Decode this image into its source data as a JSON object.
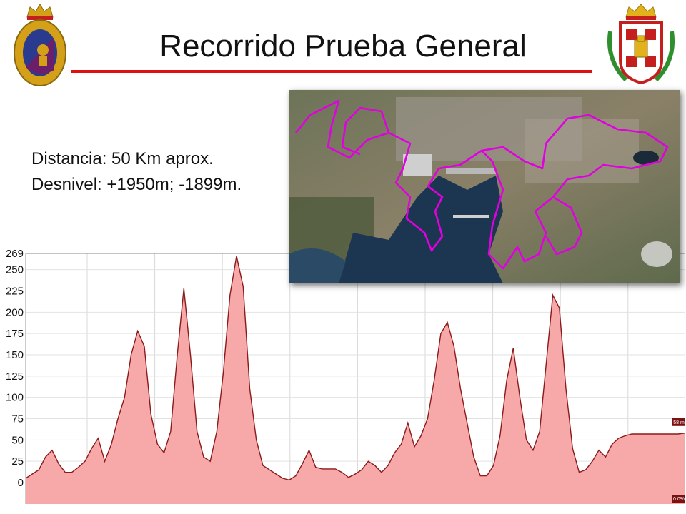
{
  "header": {
    "title": "Recorrido Prueba General"
  },
  "info": {
    "distance": "Distancia: 50 Km aprox.",
    "elevation": "Desnivel: +1950m; -1899m."
  },
  "map": {
    "description_icon": "satellite-route-map",
    "route_color": "#e000e0"
  },
  "colors": {
    "accent_line": "#e01010",
    "profile_stroke": "#8b1a1a",
    "profile_fill": "#f7a8a8"
  },
  "chart_data": {
    "type": "area",
    "xlabel": "",
    "ylabel": "",
    "ylim": [
      0,
      269
    ],
    "yticks": [
      0,
      25,
      50,
      75,
      100,
      125,
      150,
      175,
      200,
      225,
      250,
      269
    ],
    "xlim": [
      0,
      100
    ],
    "grid": true,
    "series": [
      {
        "x": [
          0,
          2,
          3,
          4,
          5,
          6,
          7,
          8,
          9,
          10,
          11,
          12,
          13,
          14,
          15,
          16,
          17,
          18,
          19,
          20,
          21,
          22,
          23,
          24,
          25,
          26,
          27,
          28,
          29,
          30,
          31,
          32,
          33,
          34,
          35,
          36,
          37,
          38,
          39,
          40,
          41,
          42,
          43,
          44,
          45,
          46,
          47,
          48,
          49,
          50,
          51,
          52,
          53,
          54,
          55,
          56,
          57,
          58,
          59,
          60,
          61,
          62,
          63,
          64,
          65,
          66,
          67,
          68,
          69,
          70,
          71,
          72,
          73,
          74,
          75,
          76,
          77,
          78,
          79,
          80,
          81,
          82,
          83,
          84,
          85,
          86,
          87,
          88,
          89,
          90,
          91,
          92,
          93,
          94,
          95,
          96,
          97,
          98,
          99,
          100
        ],
        "values": [
          5,
          15,
          30,
          38,
          22,
          12,
          12,
          18,
          25,
          40,
          52,
          25,
          45,
          75,
          100,
          150,
          178,
          160,
          80,
          45,
          35,
          60,
          150,
          228,
          150,
          60,
          30,
          25,
          60,
          130,
          220,
          266,
          230,
          110,
          50,
          20,
          15,
          10,
          5,
          3,
          8,
          22,
          38,
          18,
          16,
          16,
          16,
          12,
          6,
          10,
          15,
          25,
          20,
          12,
          20,
          35,
          45,
          70,
          42,
          55,
          75,
          120,
          175,
          188,
          160,
          110,
          70,
          30,
          8,
          8,
          20,
          55,
          120,
          158,
          100,
          50,
          38,
          60,
          140,
          220,
          205,
          110,
          40,
          12,
          15,
          25,
          38,
          30,
          45,
          52,
          55,
          57,
          57,
          57,
          57,
          57,
          57,
          57,
          57,
          58
        ]
      }
    ],
    "annotations": [
      "58 m",
      "0.0%"
    ]
  }
}
